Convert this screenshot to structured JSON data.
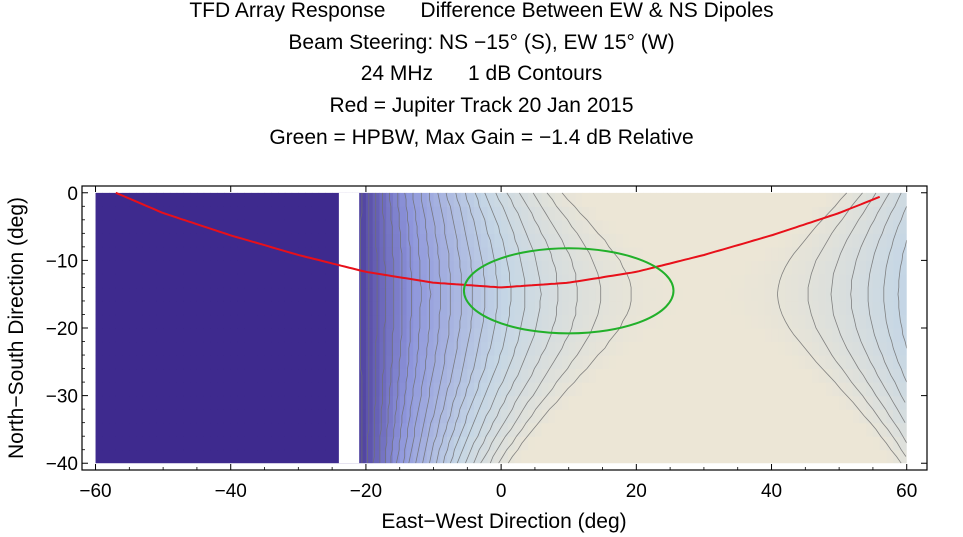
{
  "chart_data": {
    "type": "contour",
    "title_lines": [
      "TFD Array Response      Difference Between EW & NS Dipoles",
      "Beam Steering: NS −15° (S), EW 15° (W)",
      "24 MHz      1 dB Contours",
      "Red = Jupiter Track 20 Jan 2015",
      "Green = HPBW, Max Gain = −1.4 dB Relative"
    ],
    "xlabel": "East−West Direction (deg)",
    "ylabel": "North−South Direction (deg)",
    "xlim": [
      -62,
      63
    ],
    "ylim": [
      -41,
      1
    ],
    "x_ticks": [
      -60,
      -40,
      -20,
      0,
      20,
      40,
      60
    ],
    "y_ticks": [
      0,
      -10,
      -20,
      -30,
      -40
    ],
    "x_tick_labels": [
      "−60",
      "−40",
      "−20",
      "0",
      "20",
      "40",
      "60"
    ],
    "y_tick_labels": [
      "0",
      "−10",
      "−20",
      "−30",
      "−40"
    ],
    "data_extent": {
      "x": [
        -60,
        60
      ],
      "y": [
        -40,
        0
      ]
    },
    "gap_x": [
      -24,
      -21
    ],
    "contour_step_db": 1,
    "colors": {
      "jupiter_track": "#e8101a",
      "hpbw": "#22b02a",
      "contour_line": "#707070",
      "deep": "#3e2a8e",
      "low": "#8f97dc",
      "mid": "#c5d6e5",
      "high": "#ece6d6"
    },
    "series": [
      {
        "name": "Red = Jupiter Track 20 Jan 2015",
        "kind": "line",
        "x": [
          -57,
          -50,
          -40,
          -30,
          -20,
          -10,
          0,
          10,
          20,
          30,
          40,
          50,
          56
        ],
        "y": [
          0,
          -3,
          -6.3,
          -9.2,
          -11.7,
          -13.3,
          -14,
          -13.3,
          -11.7,
          -9.2,
          -6.3,
          -3,
          -0.6
        ]
      },
      {
        "name": "Green = HPBW",
        "kind": "ellipse",
        "center": [
          10,
          -14.5
        ],
        "radius_x": 15.5,
        "radius_y": 6.3
      }
    ]
  }
}
